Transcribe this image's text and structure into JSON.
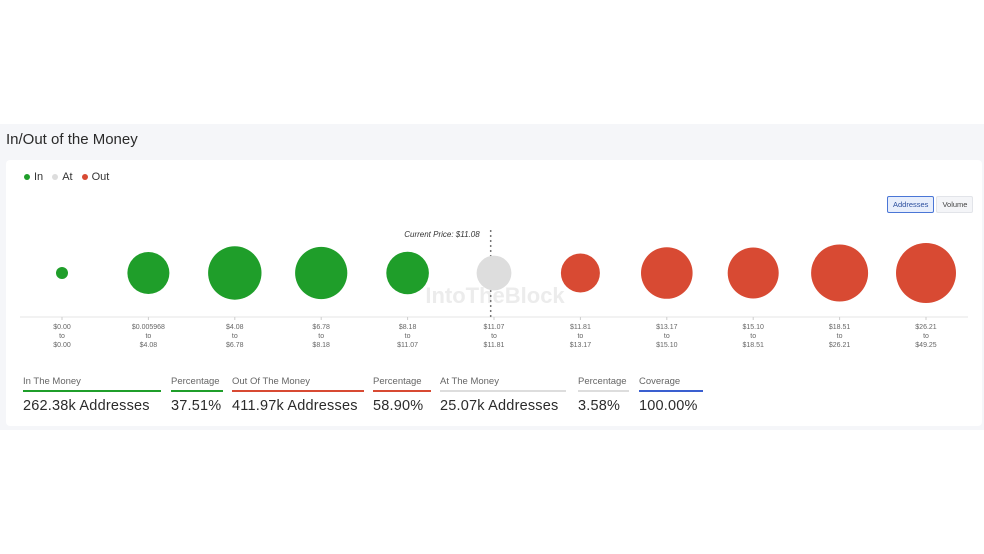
{
  "title": "In/Out of the Money",
  "legend": [
    {
      "label": "In",
      "color": "#1f9e2a"
    },
    {
      "label": "At",
      "color": "#dddddd"
    },
    {
      "label": "Out",
      "color": "#d84a33"
    }
  ],
  "toggle": {
    "addresses_label": "Addresses",
    "volume_label": "Volume",
    "active": "Addresses"
  },
  "watermark": "IntoTheBlock",
  "chart_data": {
    "type": "scatter",
    "current_price_label": "Current Price: $11.08",
    "current_price": 11.08,
    "legend_position": "top-left",
    "series_colors": {
      "In": "#1f9e2a",
      "At": "#dddddd",
      "Out": "#d84a33"
    },
    "ranges": [
      {
        "from": "$0.00",
        "to": "$0.00",
        "status": "In",
        "relative_size": 0.2
      },
      {
        "from": "$0.005968",
        "to": "$4.08",
        "status": "In",
        "relative_size": 0.7
      },
      {
        "from": "$4.08",
        "to": "$6.78",
        "status": "In",
        "relative_size": 0.89
      },
      {
        "from": "$6.78",
        "to": "$8.18",
        "status": "In",
        "relative_size": 0.87
      },
      {
        "from": "$8.18",
        "to": "$11.07",
        "status": "In",
        "relative_size": 0.71
      },
      {
        "from": "$11.07",
        "to": "$11.81",
        "status": "At",
        "relative_size": 0.58
      },
      {
        "from": "$11.81",
        "to": "$13.17",
        "status": "Out",
        "relative_size": 0.65
      },
      {
        "from": "$13.17",
        "to": "$15.10",
        "status": "Out",
        "relative_size": 0.86
      },
      {
        "from": "$15.10",
        "to": "$18.51",
        "status": "Out",
        "relative_size": 0.85
      },
      {
        "from": "$18.51",
        "to": "$26.21",
        "status": "Out",
        "relative_size": 0.95
      },
      {
        "from": "$26.21",
        "to": "$49.25",
        "status": "Out",
        "relative_size": 1.0
      }
    ],
    "tick_connector": "to"
  },
  "stats": [
    {
      "label": "In The Money",
      "value": "262.38k Addresses",
      "color": "#1f9e2a"
    },
    {
      "label": "Percentage",
      "value": "37.51%",
      "color": "#1f9e2a"
    },
    {
      "label": "Out Of The Money",
      "value": "411.97k Addresses",
      "color": "#d84a33"
    },
    {
      "label": "Percentage",
      "value": "58.90%",
      "color": "#d84a33"
    },
    {
      "label": "At The Money",
      "value": "25.07k Addresses",
      "color": "#dddddd"
    },
    {
      "label": "Percentage",
      "value": "3.58%",
      "color": "#dddddd"
    },
    {
      "label": "Coverage",
      "value": "100.00%",
      "color": "#3a5fd0"
    }
  ]
}
